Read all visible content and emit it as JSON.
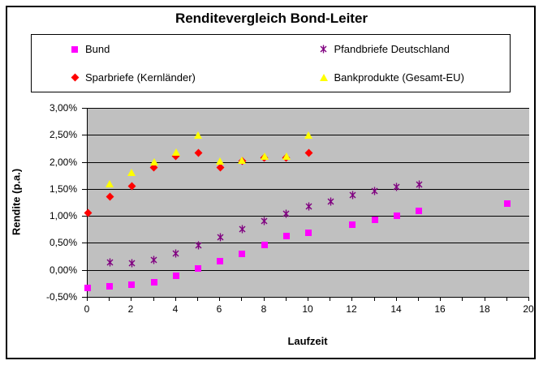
{
  "chart_data": {
    "type": "scatter",
    "title": "Renditevergleich Bond-Leiter",
    "xlabel": "Laufzeit",
    "ylabel": "Rendite (p.a.)",
    "xlim": [
      0,
      20
    ],
    "ylim": [
      -0.5,
      3.0
    ],
    "x_major_step": 2,
    "x_minor_step": 1,
    "y_step": 0.5,
    "grid": "horizontal",
    "plot_bg_color": "#C0C0C0",
    "x_tick_labels": [
      "0",
      "2",
      "4",
      "6",
      "8",
      "10",
      "12",
      "14",
      "16",
      "18",
      "20"
    ],
    "y_ticks": [
      {
        "value": 3.0,
        "label": "3,00%"
      },
      {
        "value": 2.5,
        "label": "2,50%"
      },
      {
        "value": 2.0,
        "label": "2,00%"
      },
      {
        "value": 1.5,
        "label": "1,50%"
      },
      {
        "value": 1.0,
        "label": "1,00%"
      },
      {
        "value": 0.5,
        "label": "0,50%"
      },
      {
        "value": 0.0,
        "label": "0,00%"
      },
      {
        "value": -0.5,
        "label": "-0,50%"
      }
    ],
    "legend_position": "top",
    "series": [
      {
        "name": "Bund",
        "marker": "square",
        "color": "#FF00FF",
        "points": [
          [
            0,
            -0.33
          ],
          [
            1,
            -0.3
          ],
          [
            2,
            -0.28
          ],
          [
            3,
            -0.23
          ],
          [
            4,
            -0.11
          ],
          [
            5,
            0.03
          ],
          [
            6,
            0.16
          ],
          [
            7,
            0.3
          ],
          [
            8,
            0.46
          ],
          [
            9,
            0.62
          ],
          [
            10,
            0.68
          ],
          [
            12,
            0.84
          ],
          [
            13,
            0.92
          ],
          [
            14,
            1.0
          ],
          [
            15,
            1.09
          ],
          [
            19,
            1.23
          ]
        ]
      },
      {
        "name": "Pfandbriefe Deutschland",
        "marker": "xstar",
        "color": "#800080",
        "points": [
          [
            1,
            0.17
          ],
          [
            2,
            0.15
          ],
          [
            3,
            0.22
          ],
          [
            4,
            0.34
          ],
          [
            5,
            0.48
          ],
          [
            6,
            0.64
          ],
          [
            7,
            0.79
          ],
          [
            8,
            0.93
          ],
          [
            9,
            1.07
          ],
          [
            10,
            1.2
          ],
          [
            11,
            1.3
          ],
          [
            12,
            1.42
          ],
          [
            13,
            1.49
          ],
          [
            14,
            1.56
          ],
          [
            15,
            1.61
          ]
        ]
      },
      {
        "name": "Sparbriefe (Kernländer)",
        "marker": "diamond",
        "color": "#FF0000",
        "points": [
          [
            0,
            1.05
          ],
          [
            1,
            1.35
          ],
          [
            2,
            1.55
          ],
          [
            3,
            1.9
          ],
          [
            4,
            2.1
          ],
          [
            5,
            2.17
          ],
          [
            6,
            1.9
          ],
          [
            7,
            2.02
          ],
          [
            8,
            2.08
          ],
          [
            9,
            2.08
          ],
          [
            10,
            2.17
          ]
        ]
      },
      {
        "name": "Bankprodukte (Gesamt-EU)",
        "marker": "triangle",
        "color": "#FFFF00",
        "points": [
          [
            1,
            1.6
          ],
          [
            2,
            1.8
          ],
          [
            3,
            2.0
          ],
          [
            4,
            2.18
          ],
          [
            5,
            2.5
          ],
          [
            6,
            2.02
          ],
          [
            7,
            2.03
          ],
          [
            8,
            2.1
          ],
          [
            9,
            2.1
          ],
          [
            10,
            2.5
          ]
        ]
      }
    ]
  }
}
